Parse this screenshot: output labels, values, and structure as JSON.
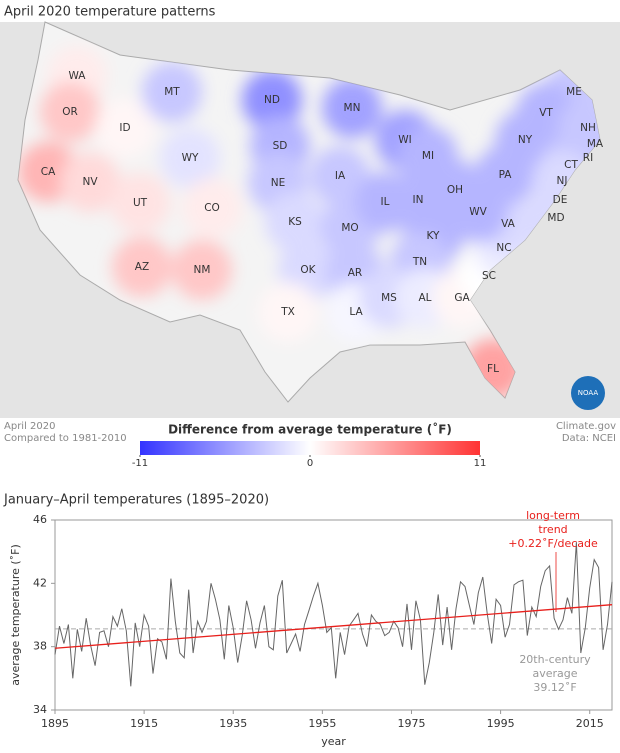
{
  "map": {
    "title": "April 2020 temperature patterns",
    "states": [
      {
        "label": "WA",
        "value": 1
      },
      {
        "label": "OR",
        "value": 3
      },
      {
        "label": "CA",
        "value": 4
      },
      {
        "label": "NV",
        "value": 2
      },
      {
        "label": "ID",
        "value": 0.5
      },
      {
        "label": "MT",
        "value": -3
      },
      {
        "label": "WY",
        "value": -1.5
      },
      {
        "label": "UT",
        "value": 1.5
      },
      {
        "label": "CO",
        "value": 1
      },
      {
        "label": "AZ",
        "value": 3
      },
      {
        "label": "NM",
        "value": 3
      },
      {
        "label": "ND",
        "value": -6
      },
      {
        "label": "SD",
        "value": -4
      },
      {
        "label": "NE",
        "value": -3
      },
      {
        "label": "KS",
        "value": -2
      },
      {
        "label": "OK",
        "value": -2
      },
      {
        "label": "TX",
        "value": 0.5
      },
      {
        "label": "MN",
        "value": -5
      },
      {
        "label": "IA",
        "value": -3
      },
      {
        "label": "MO",
        "value": -3
      },
      {
        "label": "AR",
        "value": -3
      },
      {
        "label": "LA",
        "value": -0.5
      },
      {
        "label": "WI",
        "value": -5
      },
      {
        "label": "IL",
        "value": -4
      },
      {
        "label": "MI",
        "value": -4
      },
      {
        "label": "IN",
        "value": -4
      },
      {
        "label": "OH",
        "value": -4
      },
      {
        "label": "KY",
        "value": -4
      },
      {
        "label": "TN",
        "value": -3
      },
      {
        "label": "MS",
        "value": -2
      },
      {
        "label": "AL",
        "value": -1
      },
      {
        "label": "GA",
        "value": 0.5
      },
      {
        "label": "FL",
        "value": 5
      },
      {
        "label": "SC",
        "value": 0
      },
      {
        "label": "NC",
        "value": -1
      },
      {
        "label": "VA",
        "value": -2
      },
      {
        "label": "WV",
        "value": -4
      },
      {
        "label": "PA",
        "value": -4
      },
      {
        "label": "NY",
        "value": -4
      },
      {
        "label": "ME",
        "value": -3
      },
      {
        "label": "VT",
        "value": -4
      },
      {
        "label": "NH",
        "value": -3
      },
      {
        "label": "MA",
        "value": -3
      },
      {
        "label": "RI",
        "value": -3
      },
      {
        "label": "CT",
        "value": -3
      },
      {
        "label": "NJ",
        "value": -2
      },
      {
        "label": "DE",
        "value": -2
      },
      {
        "label": "MD",
        "value": -2
      }
    ],
    "colorbar": {
      "title": "Difference from average temperature (˚F)",
      "ticks": [
        -11,
        0,
        11
      ],
      "low_color": "#3333ff",
      "high_color": "#ff3333"
    },
    "notes": {
      "date": "April 2020",
      "baseline": "Compared to 1981-2010",
      "source": "Climate.gov",
      "data": "Data: NCEI",
      "logo": "NOAA"
    }
  },
  "chart_data": {
    "type": "line",
    "title": "January–April temperatures (1895–2020)",
    "xlabel": "year",
    "ylabel": "average temperature (˚F)",
    "x": [
      1895,
      1896,
      1897,
      1898,
      1899,
      1900,
      1901,
      1902,
      1903,
      1904,
      1905,
      1906,
      1907,
      1908,
      1909,
      1910,
      1911,
      1912,
      1913,
      1914,
      1915,
      1916,
      1917,
      1918,
      1919,
      1920,
      1921,
      1922,
      1923,
      1924,
      1925,
      1926,
      1927,
      1928,
      1929,
      1930,
      1931,
      1932,
      1933,
      1934,
      1935,
      1936,
      1937,
      1938,
      1939,
      1940,
      1941,
      1942,
      1943,
      1944,
      1945,
      1946,
      1947,
      1948,
      1949,
      1950,
      1951,
      1952,
      1953,
      1954,
      1955,
      1956,
      1957,
      1958,
      1959,
      1960,
      1961,
      1962,
      1963,
      1964,
      1965,
      1966,
      1967,
      1968,
      1969,
      1970,
      1971,
      1972,
      1973,
      1974,
      1975,
      1976,
      1977,
      1978,
      1979,
      1980,
      1981,
      1982,
      1983,
      1984,
      1985,
      1986,
      1987,
      1988,
      1989,
      1990,
      1991,
      1992,
      1993,
      1994,
      1995,
      1996,
      1997,
      1998,
      1999,
      2000,
      2001,
      2002,
      2003,
      2004,
      2005,
      2006,
      2007,
      2008,
      2009,
      2010,
      2011,
      2012,
      2013,
      2014,
      2015,
      2016,
      2017,
      2018,
      2019,
      2020
    ],
    "series": [
      {
        "color": "#666666",
        "values": [
          37.5,
          39.3,
          38.2,
          39.4,
          36.0,
          39.1,
          37.7,
          39.8,
          38.1,
          36.8,
          38.9,
          39.0,
          38.0,
          39.9,
          39.3,
          40.4,
          39.0,
          35.5,
          39.5,
          38.0,
          40.0,
          39.3,
          36.3,
          38.5,
          38.3,
          37.2,
          42.3,
          39.6,
          37.6,
          37.3,
          41.6,
          37.6,
          39.6,
          38.9,
          39.6,
          42.0,
          41.0,
          39.7,
          37.2,
          40.6,
          39.2,
          37.0,
          38.7,
          40.9,
          39.7,
          37.9,
          39.5,
          40.6,
          38.0,
          37.8,
          41.2,
          42.2,
          37.6,
          38.2,
          38.8,
          37.7,
          39.4,
          40.3,
          41.2,
          42.0,
          40.6,
          38.9,
          39.2,
          36.0,
          38.9,
          37.5,
          39.3,
          39.7,
          40.1,
          38.8,
          38.0,
          40.0,
          39.6,
          39.4,
          38.7,
          38.9,
          39.6,
          39.2,
          38.0,
          40.7,
          37.8,
          40.9,
          39.7,
          35.6,
          37.0,
          38.9,
          41.3,
          38.1,
          40.5,
          37.8,
          40.4,
          42.1,
          41.8,
          40.6,
          39.4,
          41.4,
          42.4,
          40.1,
          38.2,
          41.0,
          40.6,
          38.6,
          39.4,
          41.9,
          42.1,
          42.2,
          38.7,
          40.5,
          39.9,
          41.8,
          42.8,
          43.1,
          39.8,
          39.1,
          39.7,
          41.1,
          40.1,
          44.6,
          37.6,
          39.2,
          41.7,
          43.5,
          43.0,
          37.8,
          39.4,
          42.1
        ]
      }
    ],
    "trend": {
      "x": [
        1895,
        2020
      ],
      "values": [
        37.9,
        40.65
      ],
      "color": "#e8201c",
      "label": [
        "long-term",
        "trend"
      ],
      "rate_label": "+0.22˚F/decade"
    },
    "average": {
      "value": 39.12,
      "label": "39.12˚F",
      "title": [
        "20th-century",
        "average"
      ],
      "color": "#aaaaaa"
    },
    "xlim": [
      1895,
      2020
    ],
    "xticks": [
      1895,
      1915,
      1935,
      1955,
      1975,
      1995,
      2015
    ],
    "ylim": [
      34,
      46
    ],
    "yticks": [
      34,
      38,
      42,
      46
    ]
  }
}
